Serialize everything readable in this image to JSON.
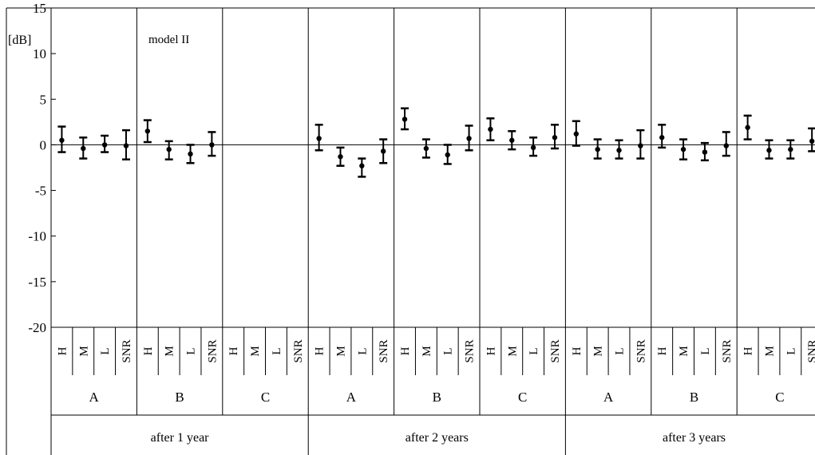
{
  "chart_data": {
    "type": "errorbar",
    "annotation": "model II",
    "y_unit": "[dB]",
    "ylim": [
      -20,
      15
    ],
    "yticks": [
      "15",
      "10",
      "5",
      "0",
      "-5",
      "-10",
      "-15",
      "-20"
    ],
    "categories": [
      "H",
      "M",
      "L",
      "SNR"
    ],
    "groups": [
      "A",
      "B",
      "C"
    ],
    "periods": [
      "after 1 year",
      "after 2 years",
      "after 3 years"
    ],
    "grid": false,
    "legend": "none",
    "points": [
      {
        "period": "after 1 year",
        "group": "A",
        "category": "H",
        "value": 0.5,
        "low": -0.8,
        "high": 2.0
      },
      {
        "period": "after 1 year",
        "group": "A",
        "category": "M",
        "value": -0.4,
        "low": -1.5,
        "high": 0.8
      },
      {
        "period": "after 1 year",
        "group": "A",
        "category": "L",
        "value": 0.0,
        "low": -0.8,
        "high": 1.0
      },
      {
        "period": "after 1 year",
        "group": "A",
        "category": "SNR",
        "value": -0.1,
        "low": -1.6,
        "high": 1.6
      },
      {
        "period": "after 1 year",
        "group": "B",
        "category": "H",
        "value": 1.5,
        "low": 0.3,
        "high": 2.7
      },
      {
        "period": "after 1 year",
        "group": "B",
        "category": "M",
        "value": -0.5,
        "low": -1.6,
        "high": 0.4
      },
      {
        "period": "after 1 year",
        "group": "B",
        "category": "L",
        "value": -1.0,
        "low": -2.0,
        "high": 0.0
      },
      {
        "period": "after 1 year",
        "group": "B",
        "category": "SNR",
        "value": 0.0,
        "low": -1.2,
        "high": 1.4
      },
      {
        "period": "after 2 years",
        "group": "A",
        "category": "H",
        "value": 0.7,
        "low": -0.6,
        "high": 2.2
      },
      {
        "period": "after 2 years",
        "group": "A",
        "category": "M",
        "value": -1.3,
        "low": -2.3,
        "high": -0.3
      },
      {
        "period": "after 2 years",
        "group": "A",
        "category": "L",
        "value": -2.3,
        "low": -3.5,
        "high": -1.5
      },
      {
        "period": "after 2 years",
        "group": "A",
        "category": "SNR",
        "value": -0.7,
        "low": -2.0,
        "high": 0.6
      },
      {
        "period": "after 2 years",
        "group": "B",
        "category": "H",
        "value": 2.8,
        "low": 1.7,
        "high": 4.0
      },
      {
        "period": "after 2 years",
        "group": "B",
        "category": "M",
        "value": -0.4,
        "low": -1.4,
        "high": 0.6
      },
      {
        "period": "after 2 years",
        "group": "B",
        "category": "L",
        "value": -1.1,
        "low": -2.1,
        "high": 0.0
      },
      {
        "period": "after 2 years",
        "group": "B",
        "category": "SNR",
        "value": 0.7,
        "low": -0.6,
        "high": 2.1
      },
      {
        "period": "after 2 years",
        "group": "C",
        "category": "H",
        "value": 1.7,
        "low": 0.5,
        "high": 2.9
      },
      {
        "period": "after 2 years",
        "group": "C",
        "category": "M",
        "value": 0.5,
        "low": -0.5,
        "high": 1.5
      },
      {
        "period": "after 2 years",
        "group": "C",
        "category": "L",
        "value": -0.3,
        "low": -1.2,
        "high": 0.8
      },
      {
        "period": "after 2 years",
        "group": "C",
        "category": "SNR",
        "value": 0.8,
        "low": -0.4,
        "high": 2.2
      },
      {
        "period": "after 3 years",
        "group": "A",
        "category": "H",
        "value": 1.2,
        "low": -0.1,
        "high": 2.6
      },
      {
        "period": "after 3 years",
        "group": "A",
        "category": "M",
        "value": -0.5,
        "low": -1.5,
        "high": 0.6
      },
      {
        "period": "after 3 years",
        "group": "A",
        "category": "L",
        "value": -0.6,
        "low": -1.5,
        "high": 0.5
      },
      {
        "period": "after 3 years",
        "group": "A",
        "category": "SNR",
        "value": -0.1,
        "low": -1.5,
        "high": 1.6
      },
      {
        "period": "after 3 years",
        "group": "B",
        "category": "H",
        "value": 0.8,
        "low": -0.3,
        "high": 2.2
      },
      {
        "period": "after 3 years",
        "group": "B",
        "category": "M",
        "value": -0.5,
        "low": -1.6,
        "high": 0.6
      },
      {
        "period": "after 3 years",
        "group": "B",
        "category": "L",
        "value": -0.8,
        "low": -1.7,
        "high": 0.2
      },
      {
        "period": "after 3 years",
        "group": "B",
        "category": "SNR",
        "value": -0.1,
        "low": -1.2,
        "high": 1.4
      },
      {
        "period": "after 3 years",
        "group": "C",
        "category": "H",
        "value": 1.9,
        "low": 0.6,
        "high": 3.2
      },
      {
        "period": "after 3 years",
        "group": "C",
        "category": "M",
        "value": -0.6,
        "low": -1.5,
        "high": 0.5
      },
      {
        "period": "after 3 years",
        "group": "C",
        "category": "L",
        "value": -0.5,
        "low": -1.5,
        "high": 0.5
      },
      {
        "period": "after 3 years",
        "group": "C",
        "category": "SNR",
        "value": 0.4,
        "low": -0.7,
        "high": 1.8
      }
    ]
  }
}
